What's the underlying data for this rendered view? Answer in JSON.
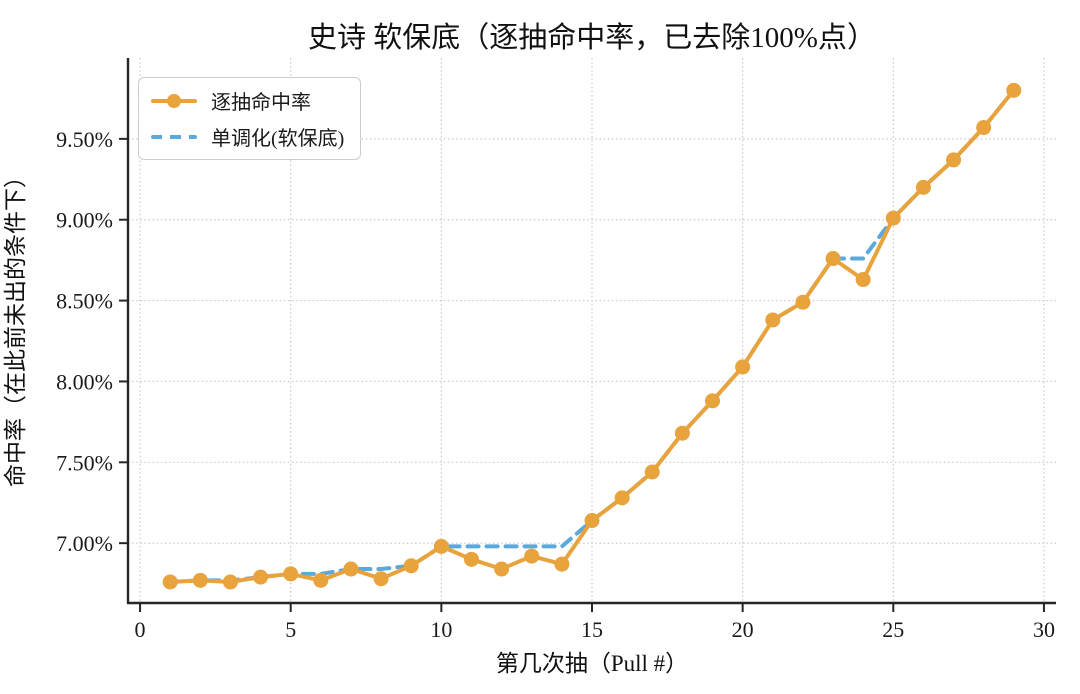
{
  "chart_data": {
    "type": "line",
    "title": "史诗 软保底（逐抽命中率，已去除100%点）",
    "xlabel": "第几次抽（Pull #）",
    "ylabel": "命中率（在此前未出的条件下）",
    "x": [
      1,
      2,
      3,
      4,
      5,
      6,
      7,
      8,
      9,
      10,
      11,
      12,
      13,
      14,
      15,
      16,
      17,
      18,
      19,
      20,
      21,
      22,
      23,
      24,
      25,
      26,
      27,
      28,
      29
    ],
    "series": [
      {
        "name": "逐抽命中率",
        "color": "#E8A33C",
        "style": "solid",
        "markers": true,
        "values": [
          6.76,
          6.77,
          6.76,
          6.79,
          6.81,
          6.77,
          6.84,
          6.78,
          6.86,
          6.98,
          6.9,
          6.84,
          6.92,
          6.87,
          7.14,
          7.28,
          7.44,
          7.68,
          7.88,
          8.09,
          8.38,
          8.49,
          8.76,
          8.63,
          9.01,
          9.2,
          9.37,
          9.57,
          9.8
        ]
      },
      {
        "name": "单调化(软保底)",
        "color": "#5BA9DC",
        "style": "dashed",
        "markers": false,
        "values": [
          6.76,
          6.77,
          6.77,
          6.79,
          6.81,
          6.81,
          6.84,
          6.84,
          6.86,
          6.98,
          6.98,
          6.98,
          6.98,
          6.98,
          7.14,
          7.28,
          7.44,
          7.68,
          7.88,
          8.09,
          8.38,
          8.49,
          8.76,
          8.76,
          9.01,
          9.2,
          9.37,
          9.57,
          9.8
        ]
      }
    ],
    "x_ticks": {
      "values": [
        0,
        5,
        10,
        15,
        20,
        25,
        30
      ],
      "labels": [
        "0",
        "5",
        "10",
        "15",
        "20",
        "25",
        "30"
      ]
    },
    "y_ticks": {
      "values": [
        7.0,
        7.5,
        8.0,
        8.5,
        9.0,
        9.5
      ],
      "labels": [
        "7.00%",
        "7.50%",
        "8.00%",
        "8.50%",
        "9.00%",
        "9.50%"
      ]
    },
    "xlim": [
      -0.4,
      30.4
    ],
    "ylim": [
      6.63,
      10.0
    ],
    "grid": true,
    "grid_color": "#c9c9c9",
    "spine_color": "#262626",
    "tick_label_color": "#1a1a1a",
    "legend_position": "upper-left"
  }
}
